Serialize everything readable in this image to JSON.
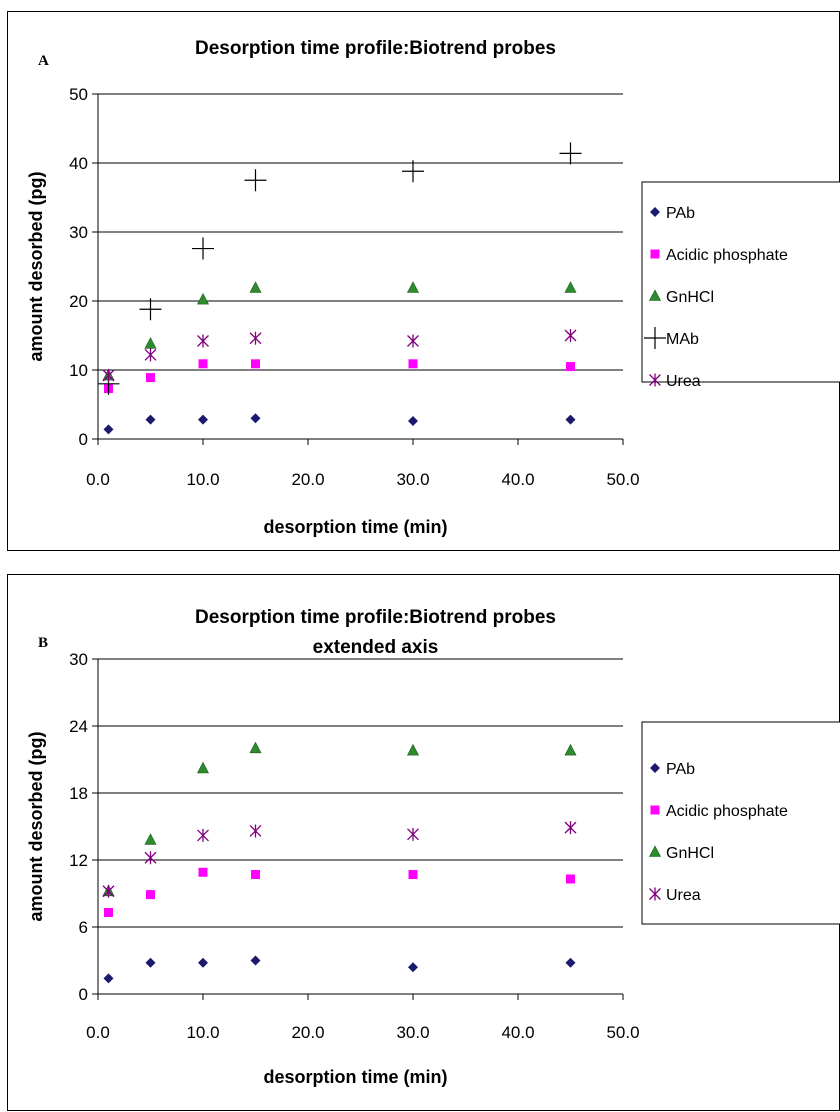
{
  "chart_data": [
    {
      "panel": "A",
      "type": "scatter",
      "title": "Desorption time profile:Biotrend probes",
      "subtitle": "",
      "xlabel": "desorption time (min)",
      "ylabel": "amount desorbed (pg)",
      "xlim": [
        0,
        50
      ],
      "ylim": [
        0,
        50
      ],
      "xticks": [
        "0.0",
        "10.0",
        "20.0",
        "30.0",
        "40.0",
        "50.0"
      ],
      "yticks": [
        "0",
        "10",
        "20",
        "30",
        "40",
        "50"
      ],
      "grid": "horizontal",
      "legend_position": "right",
      "x": [
        1,
        5,
        10,
        15,
        30,
        45
      ],
      "series": [
        {
          "name": "PAb",
          "marker": "diamond",
          "color": "#1a1a6e",
          "values": [
            1.4,
            2.8,
            2.8,
            3.0,
            2.6,
            2.8
          ]
        },
        {
          "name": "Acidic phosphate",
          "marker": "square",
          "color": "#ff00ff",
          "values": [
            7.3,
            8.9,
            10.9,
            10.9,
            10.9,
            10.5
          ]
        },
        {
          "name": "GnHCl",
          "marker": "triangle",
          "color": "#2e8b2e",
          "values": [
            9.2,
            13.8,
            20.2,
            21.9,
            21.9,
            21.9
          ]
        },
        {
          "name": "MAb",
          "marker": "plus",
          "color": "#000000",
          "values": [
            8.0,
            18.8,
            27.6,
            37.5,
            38.8,
            41.4
          ]
        },
        {
          "name": "Urea",
          "marker": "star",
          "color": "#800080",
          "values": [
            9.2,
            12.2,
            14.2,
            14.6,
            14.2,
            15.0
          ]
        }
      ]
    },
    {
      "panel": "B",
      "type": "scatter",
      "title": "Desorption time profile:Biotrend probes",
      "subtitle": "extended axis",
      "xlabel": "desorption time (min)",
      "ylabel": "amount desorbed (pg)",
      "xlim": [
        0,
        50
      ],
      "ylim": [
        0,
        30
      ],
      "xticks": [
        "0.0",
        "10.0",
        "20.0",
        "30.0",
        "40.0",
        "50.0"
      ],
      "yticks": [
        "0",
        "6",
        "12",
        "18",
        "24",
        "30"
      ],
      "grid": "horizontal",
      "legend_position": "right",
      "x": [
        1,
        5,
        10,
        15,
        30,
        45
      ],
      "series": [
        {
          "name": "PAb",
          "marker": "diamond",
          "color": "#1a1a6e",
          "values": [
            1.4,
            2.8,
            2.8,
            3.0,
            2.4,
            2.8
          ]
        },
        {
          "name": "Acidic phosphate",
          "marker": "square",
          "color": "#ff00ff",
          "values": [
            7.3,
            8.9,
            10.9,
            10.7,
            10.7,
            10.3
          ]
        },
        {
          "name": "GnHCl",
          "marker": "triangle",
          "color": "#2e8b2e",
          "values": [
            9.2,
            13.8,
            20.2,
            22.0,
            21.8,
            21.8
          ]
        },
        {
          "name": "Urea",
          "marker": "star",
          "color": "#800080",
          "values": [
            9.2,
            12.2,
            14.2,
            14.6,
            14.3,
            14.9
          ]
        }
      ]
    }
  ]
}
